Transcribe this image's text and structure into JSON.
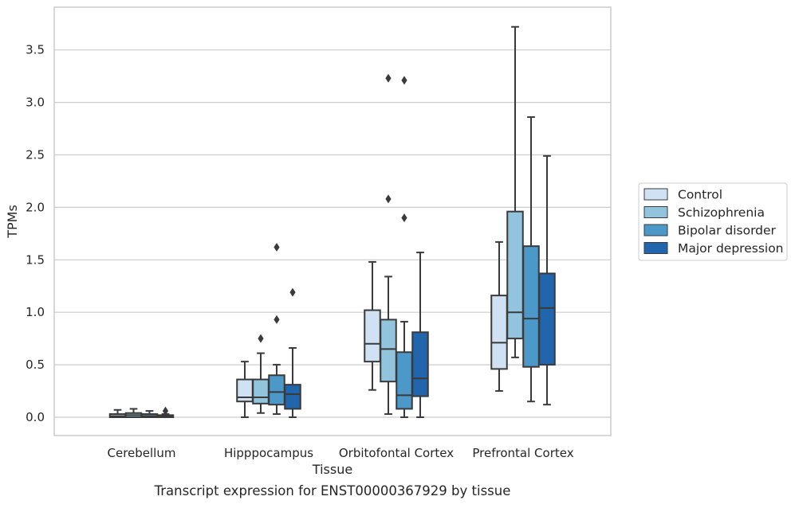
{
  "caption": "Transcript expression for ENST00000367929 by tissue",
  "chart_data": {
    "type": "boxplot",
    "xlabel": "Tissue",
    "ylabel": "TPMs",
    "ylim": [
      -0.18,
      3.9
    ],
    "yticks": [
      0.0,
      0.5,
      1.0,
      1.5,
      2.0,
      2.5,
      3.0,
      3.5
    ],
    "ytick_labels": [
      "0.0",
      "0.5",
      "1.0",
      "1.5",
      "2.0",
      "2.5",
      "3.0",
      "3.5"
    ],
    "grid": "horizontal",
    "legend_position": "right",
    "categories": [
      "Cerebellum",
      "Hipppocampus",
      "Orbitofontal Cortex",
      "Prefrontal Cortex"
    ],
    "series": [
      {
        "name": "Control",
        "color": "#cfe1f2",
        "boxes": [
          {
            "whislo": 0.0,
            "q1": 0.0,
            "med": 0.01,
            "q3": 0.03,
            "whishi": 0.07,
            "fliers": []
          },
          {
            "whislo": 0.0,
            "q1": 0.15,
            "med": 0.19,
            "q3": 0.36,
            "whishi": 0.53,
            "fliers": []
          },
          {
            "whislo": 0.26,
            "q1": 0.53,
            "med": 0.7,
            "q3": 1.02,
            "whishi": 1.48,
            "fliers": []
          },
          {
            "whislo": 0.25,
            "q1": 0.46,
            "med": 0.71,
            "q3": 1.16,
            "whishi": 1.67,
            "fliers": []
          }
        ]
      },
      {
        "name": "Schizophrenia",
        "color": "#93c4de",
        "boxes": [
          {
            "whislo": 0.0,
            "q1": 0.0,
            "med": 0.02,
            "q3": 0.04,
            "whishi": 0.08,
            "fliers": []
          },
          {
            "whislo": 0.04,
            "q1": 0.13,
            "med": 0.19,
            "q3": 0.36,
            "whishi": 0.61,
            "fliers": [
              0.75
            ]
          },
          {
            "whislo": 0.03,
            "q1": 0.34,
            "med": 0.65,
            "q3": 0.93,
            "whishi": 1.34,
            "fliers": [
              2.08,
              3.23
            ]
          },
          {
            "whislo": 0.57,
            "q1": 0.75,
            "med": 1.0,
            "q3": 1.96,
            "whishi": 3.72,
            "fliers": []
          }
        ]
      },
      {
        "name": "Bipolar disorder",
        "color": "#4b98c9",
        "boxes": [
          {
            "whislo": 0.0,
            "q1": 0.0,
            "med": 0.01,
            "q3": 0.03,
            "whishi": 0.06,
            "fliers": []
          },
          {
            "whislo": 0.03,
            "q1": 0.12,
            "med": 0.24,
            "q3": 0.4,
            "whishi": 0.5,
            "fliers": [
              0.93,
              1.62
            ]
          },
          {
            "whislo": 0.0,
            "q1": 0.08,
            "med": 0.21,
            "q3": 0.62,
            "whishi": 0.91,
            "fliers": [
              1.9,
              3.21
            ]
          },
          {
            "whislo": 0.15,
            "q1": 0.48,
            "med": 0.94,
            "q3": 1.63,
            "whishi": 2.86,
            "fliers": []
          }
        ]
      },
      {
        "name": "Major depression",
        "color": "#2166ac",
        "boxes": [
          {
            "whislo": 0.0,
            "q1": 0.0,
            "med": 0.01,
            "q3": 0.02,
            "whishi": 0.03,
            "fliers": [
              0.06
            ]
          },
          {
            "whislo": 0.0,
            "q1": 0.08,
            "med": 0.22,
            "q3": 0.31,
            "whishi": 0.66,
            "fliers": [
              1.19
            ]
          },
          {
            "whislo": 0.0,
            "q1": 0.2,
            "med": 0.37,
            "q3": 0.81,
            "whishi": 1.57,
            "fliers": []
          },
          {
            "whislo": 0.12,
            "q1": 0.5,
            "med": 1.04,
            "q3": 1.37,
            "whishi": 2.49,
            "fliers": []
          }
        ]
      }
    ]
  }
}
